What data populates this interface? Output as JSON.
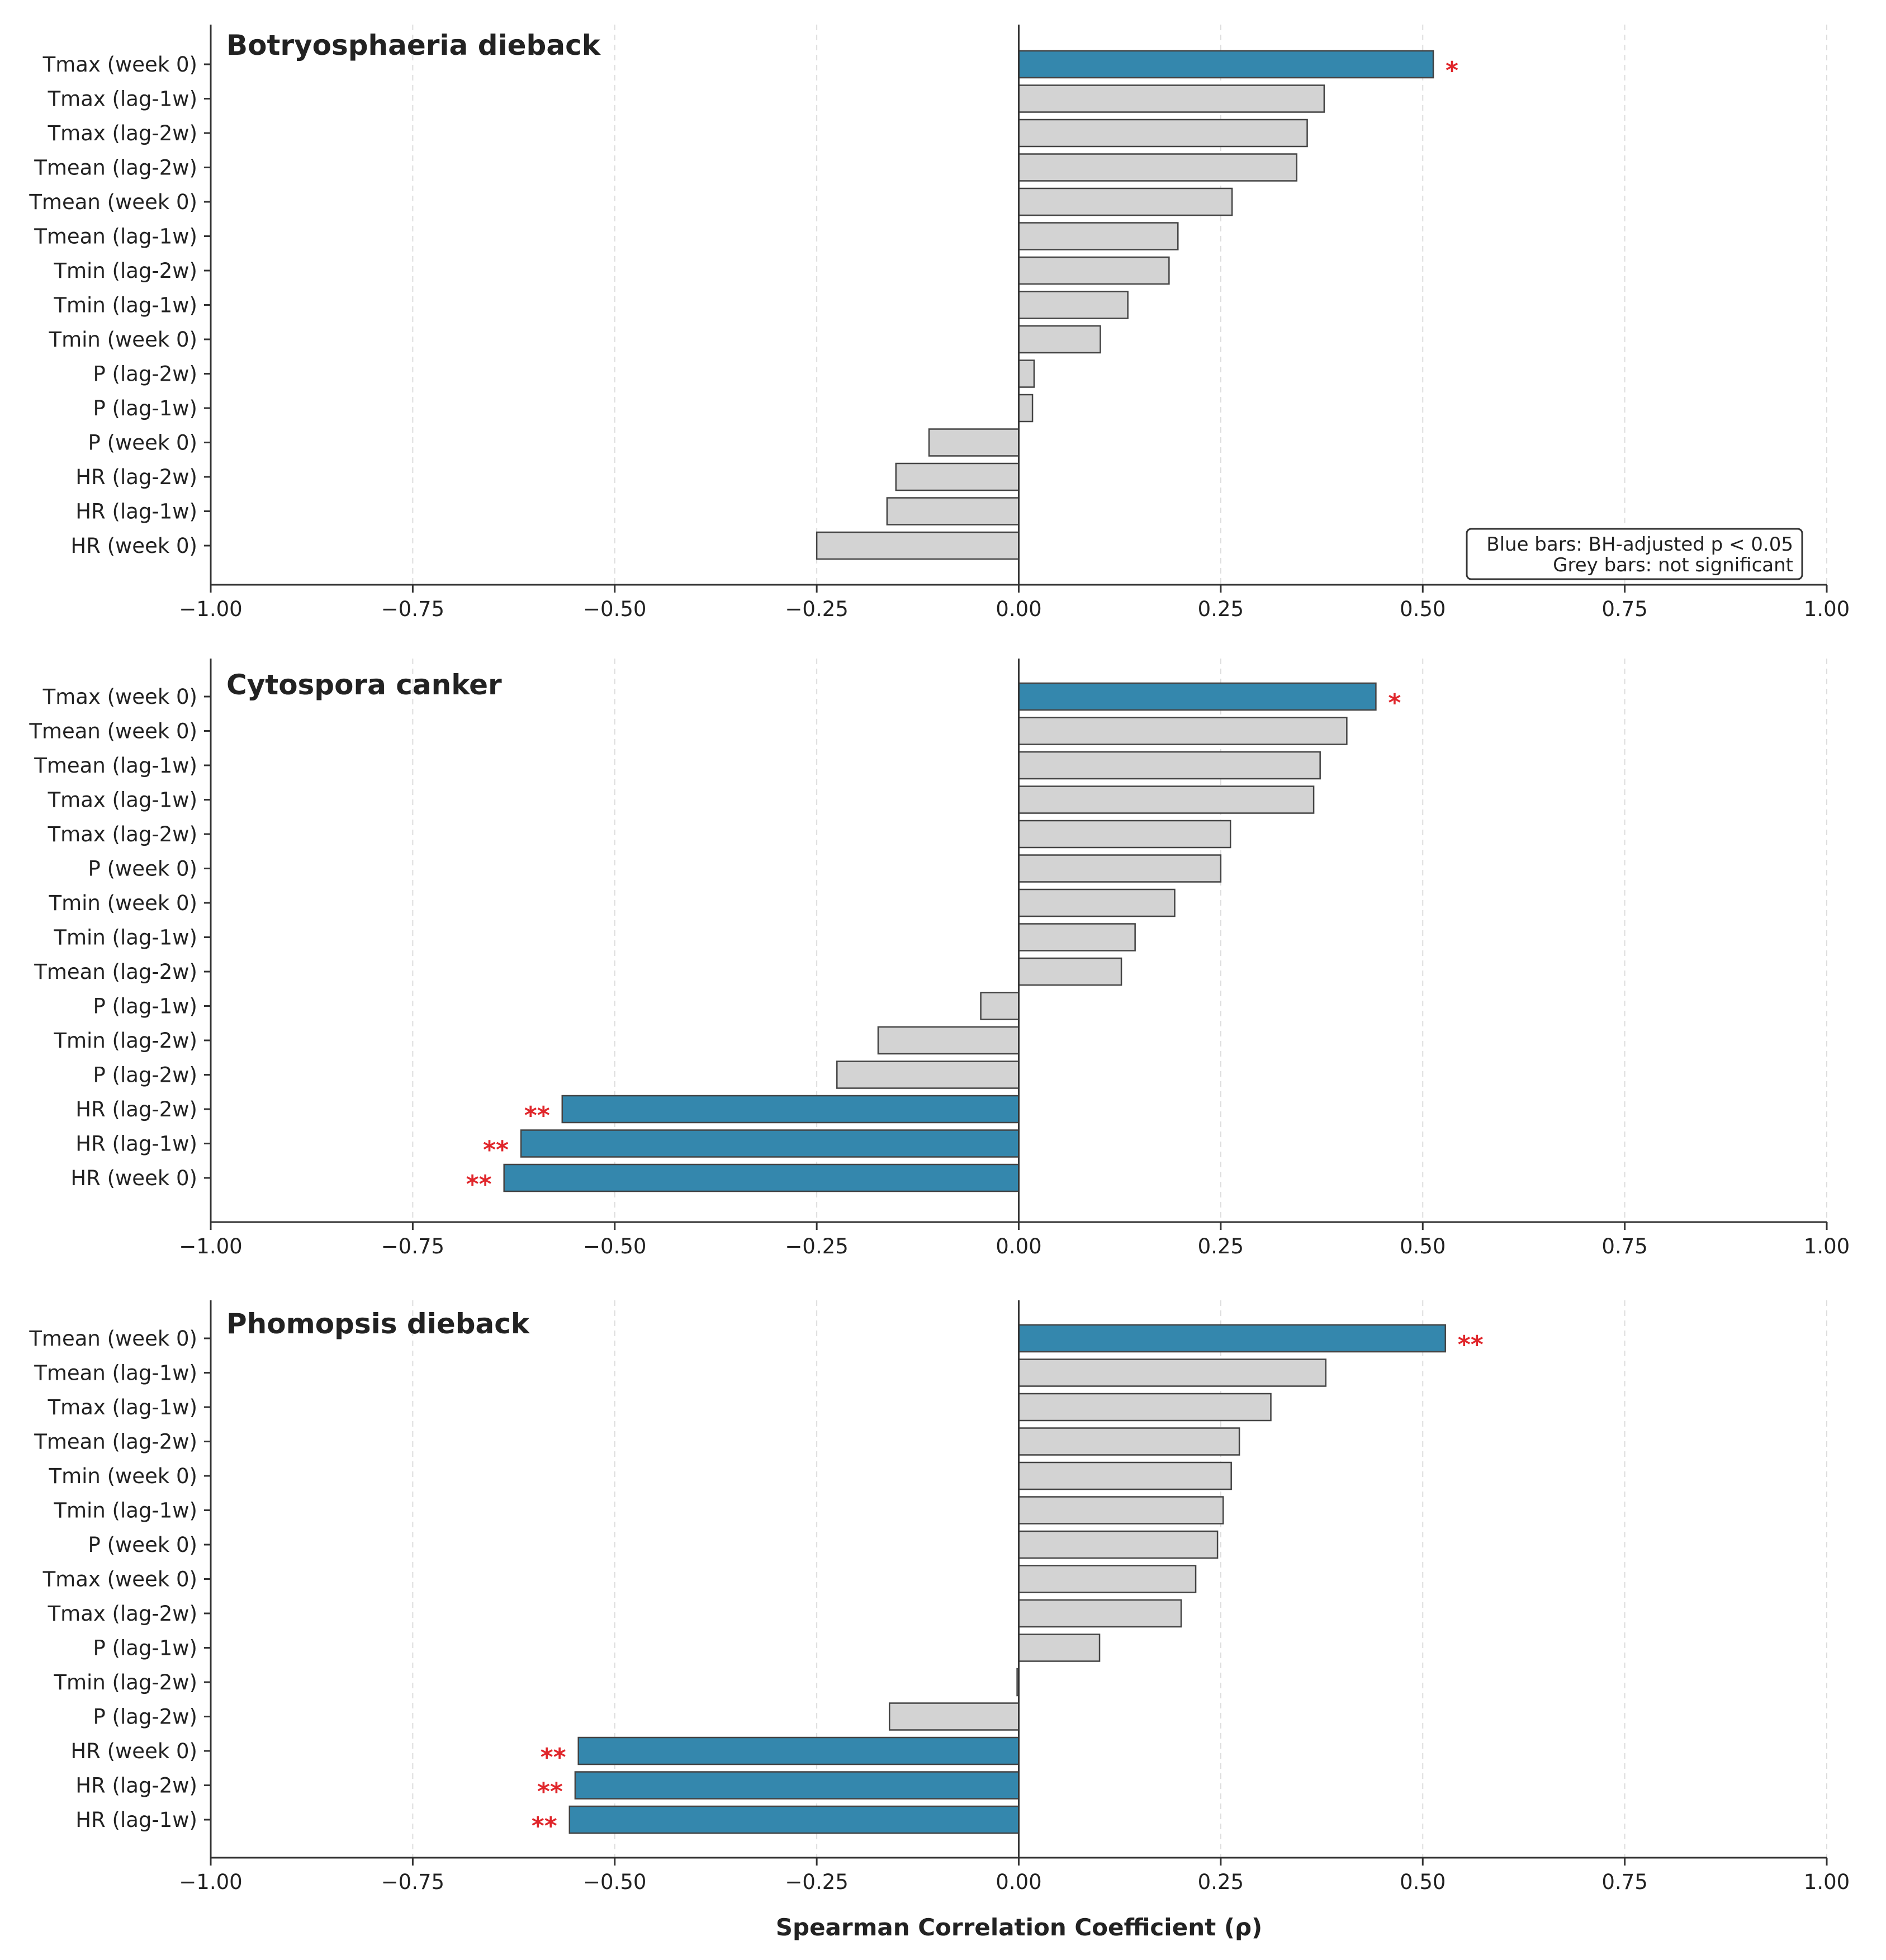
{
  "colors": {
    "significant": "#3487ad",
    "not_significant": "#d3d3d3",
    "bar_edge": "#444444",
    "star": "#e0262b",
    "grid": "#dddddd"
  },
  "xlabel": "Spearman Correlation Coefficient (ρ)",
  "legend": {
    "line1": "Blue bars: BH-adjusted p < 0.05",
    "line2": "Grey bars: not significant",
    "placement": "lower-right of first panel"
  },
  "chart_data": [
    {
      "type": "bar",
      "orientation": "horizontal",
      "title": "Botryosphaeria  dieback",
      "xlim": [
        -1.0,
        1.0
      ],
      "xticks": [
        "−1.00",
        "−0.75",
        "−0.50",
        "−0.25",
        "0.00",
        "0.25",
        "0.50",
        "0.75",
        "1.00"
      ],
      "grid": "vertical dashed",
      "categories": [
        "Tmax (week 0)",
        "Tmax (lag-1w)",
        "Tmax (lag-2w)",
        "Tmean (lag-2w)",
        "Tmean (week 0)",
        "Tmean (lag-1w)",
        "Tmin (lag-2w)",
        "Tmin (lag-1w)",
        "Tmin (week 0)",
        "P (lag-2w)",
        "P (lag-1w)",
        "P (week 0)",
        "HR (lag-2w)",
        "HR (lag-1w)",
        "HR (week 0)"
      ],
      "values": [
        0.513,
        0.378,
        0.357,
        0.344,
        0.264,
        0.197,
        0.186,
        0.135,
        0.101,
        0.019,
        0.017,
        -0.111,
        -0.152,
        -0.163,
        -0.25
      ],
      "significance": [
        "*",
        "",
        "",
        "",
        "",
        "",
        "",
        "",
        "",
        "",
        "",
        "",
        "",
        "",
        ""
      ]
    },
    {
      "type": "bar",
      "orientation": "horizontal",
      "title": "Cytospora canker",
      "xlim": [
        -1.0,
        1.0
      ],
      "xticks": [
        "−1.00",
        "−0.75",
        "−0.50",
        "−0.25",
        "0.00",
        "0.25",
        "0.50",
        "0.75",
        "1.00"
      ],
      "grid": "vertical dashed",
      "categories": [
        "Tmax (week 0)",
        "Tmean (week 0)",
        "Tmean (lag-1w)",
        "Tmax (lag-1w)",
        "Tmax (lag-2w)",
        "P (week 0)",
        "Tmin (week 0)",
        "Tmin (lag-1w)",
        "Tmean (lag-2w)",
        "P (lag-1w)",
        "Tmin (lag-2w)",
        "P (lag-2w)",
        "HR (lag-2w)",
        "HR (lag-1w)",
        "HR (week 0)"
      ],
      "values": [
        0.442,
        0.406,
        0.373,
        0.365,
        0.262,
        0.25,
        0.193,
        0.144,
        0.127,
        -0.047,
        -0.174,
        -0.225,
        -0.565,
        -0.616,
        -0.637
      ],
      "significance": [
        "*",
        "",
        "",
        "",
        "",
        "",
        "",
        "",
        "",
        "",
        "",
        "",
        "**",
        "**",
        "**"
      ]
    },
    {
      "type": "bar",
      "orientation": "horizontal",
      "title": "Phomopsis dieback",
      "xlim": [
        -1.0,
        1.0
      ],
      "xticks": [
        "−1.00",
        "−0.75",
        "−0.50",
        "−0.25",
        "0.00",
        "0.25",
        "0.50",
        "0.75",
        "1.00"
      ],
      "grid": "vertical dashed",
      "categories": [
        "Tmean (week 0)",
        "Tmean (lag-1w)",
        "Tmax (lag-1w)",
        "Tmean (lag-2w)",
        "Tmin (week 0)",
        "Tmin (lag-1w)",
        "P (week 0)",
        "Tmax (week 0)",
        "Tmax (lag-2w)",
        "P (lag-1w)",
        "Tmin (lag-2w)",
        "P (lag-2w)",
        "HR (week 0)",
        "HR (lag-2w)",
        "HR (lag-1w)"
      ],
      "values": [
        0.528,
        0.38,
        0.312,
        0.273,
        0.263,
        0.253,
        0.246,
        0.219,
        0.201,
        0.1,
        -0.002,
        -0.16,
        -0.545,
        -0.549,
        -0.556
      ],
      "significance": [
        "**",
        "",
        "",
        "",
        "",
        "",
        "",
        "",
        "",
        "",
        "",
        "",
        "**",
        "**",
        "**"
      ]
    }
  ]
}
